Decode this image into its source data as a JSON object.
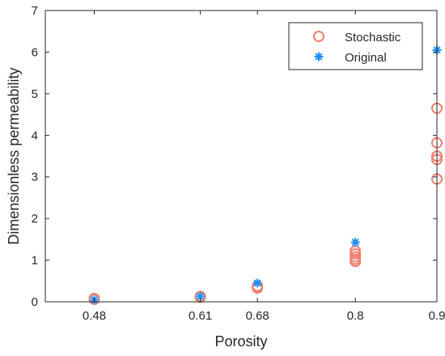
{
  "chart_data": {
    "type": "scatter",
    "title": "",
    "xlabel": "Porosity",
    "ylabel": "Dimensionless permeability",
    "xlim": [
      0.42,
      0.9
    ],
    "ylim": [
      0,
      7
    ],
    "xticks": [
      0.48,
      0.61,
      0.68,
      0.8,
      0.9
    ],
    "xtick_labels": [
      "0.48",
      "0.61",
      "0.68",
      "0.8",
      "0.9"
    ],
    "yticks": [
      0,
      1,
      2,
      3,
      4,
      5,
      6,
      7
    ],
    "ytick_labels": [
      "0",
      "1",
      "2",
      "3",
      "4",
      "5",
      "6",
      "7"
    ],
    "grid": false,
    "legend": {
      "position": "top-right",
      "entries": [
        "Stochastic",
        "Original"
      ]
    },
    "series": [
      {
        "name": "Stochastic",
        "marker": "circle",
        "color": "#F08070",
        "points": [
          [
            0.48,
            0.06
          ],
          [
            0.48,
            0.08
          ],
          [
            0.61,
            0.11
          ],
          [
            0.61,
            0.13
          ],
          [
            0.68,
            0.33
          ],
          [
            0.68,
            0.36
          ],
          [
            0.68,
            0.38
          ],
          [
            0.8,
            0.97
          ],
          [
            0.8,
            1.02
          ],
          [
            0.8,
            1.08
          ],
          [
            0.8,
            1.15
          ],
          [
            0.8,
            1.22
          ],
          [
            0.9,
            2.95
          ],
          [
            0.9,
            3.42
          ],
          [
            0.9,
            3.5
          ],
          [
            0.9,
            3.82
          ],
          [
            0.9,
            4.65
          ]
        ]
      },
      {
        "name": "Original",
        "marker": "asterisk",
        "color": "#1E90FF",
        "points": [
          [
            0.48,
            0.05
          ],
          [
            0.61,
            0.13
          ],
          [
            0.68,
            0.45
          ],
          [
            0.8,
            1.43
          ],
          [
            0.9,
            6.05
          ]
        ]
      }
    ]
  }
}
